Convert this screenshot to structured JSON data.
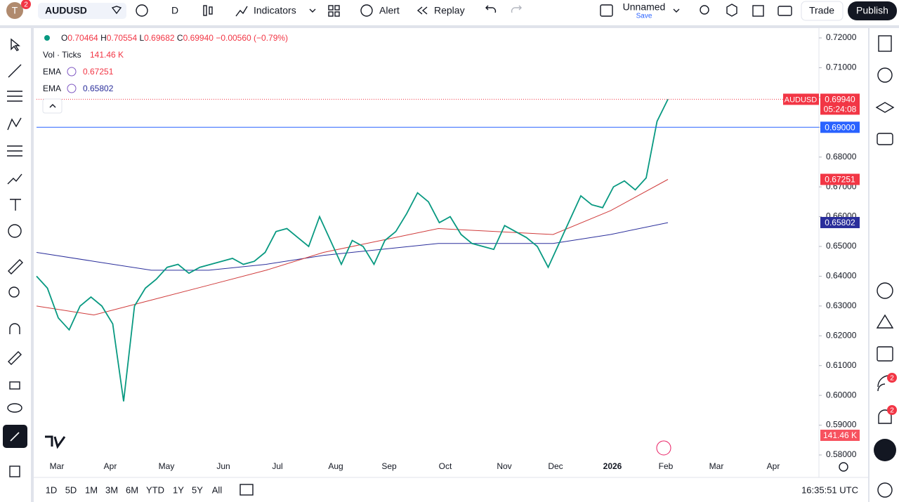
{
  "top_bar": {
    "avatar": "T",
    "avatar_badge": "2",
    "symbol": "AUDUSD",
    "interval": "D",
    "indicators": "Indicators",
    "alert": "Alert",
    "replay": "Replay",
    "layout_name": "Unnamed",
    "layout_status": "Save",
    "trade": "Trade",
    "publish": "Publish"
  },
  "legend": {
    "open_label": "O",
    "open": "0.70464",
    "high_label": "H",
    "high": "0.70554",
    "low_label": "L",
    "low": "0.69682",
    "close_label": "C",
    "close": "0.69940",
    "change": "−0.00560 (−0.79%)",
    "volume_label": "Vol · Ticks",
    "volume": "141.46 K",
    "ema_1_label": "EMA",
    "ema_1": "0.67251",
    "ema_2_label": "EMA",
    "ema_2": "0.65802"
  },
  "chart": {
    "closes": [
      0.64,
      0.636,
      0.626,
      0.622,
      0.63,
      0.633,
      0.63,
      0.624,
      0.598,
      0.63,
      0.636,
      0.639,
      0.643,
      0.644,
      0.641,
      0.643,
      0.644,
      0.645,
      0.646,
      0.644,
      0.645,
      0.648,
      0.655,
      0.656,
      0.653,
      0.65,
      0.66,
      0.652,
      0.644,
      0.652,
      0.65,
      0.644,
      0.652,
      0.655,
      0.661,
      0.668,
      0.665,
      0.658,
      0.66,
      0.654,
      0.651,
      0.65,
      0.649,
      0.657,
      0.655,
      0.653,
      0.65,
      0.643,
      0.651,
      0.659,
      0.667,
      0.664,
      0.663,
      0.67,
      0.672,
      0.669,
      0.673,
      0.692,
      0.6994
    ],
    "ema_fast": [
      0.63,
      0.627,
      0.632,
      0.637,
      0.642,
      0.648,
      0.652,
      0.656,
      0.655,
      0.654,
      0.662,
      0.6725
    ],
    "ema_slow": [
      0.648,
      0.645,
      0.642,
      0.642,
      0.644,
      0.647,
      0.649,
      0.651,
      0.651,
      0.651,
      0.654,
      0.658
    ],
    "ylim": [
      0.58,
      0.72
    ],
    "yticks": [
      {
        "value": 0.58,
        "label": "0.58000"
      },
      {
        "value": 0.59,
        "label": "0.59000"
      },
      {
        "value": 0.6,
        "label": "0.60000"
      },
      {
        "value": 0.61,
        "label": "0.61000"
      },
      {
        "value": 0.62,
        "label": "0.62000"
      },
      {
        "value": 0.63,
        "label": "0.63000"
      },
      {
        "value": 0.64,
        "label": "0.64000"
      },
      {
        "value": 0.65,
        "label": "0.65000"
      },
      {
        "value": 0.66,
        "label": "0.66000"
      },
      {
        "value": 0.67,
        "label": "0.67000"
      },
      {
        "value": 0.68,
        "label": "0.68000"
      },
      {
        "value": 0.69,
        "label": "0.69000"
      },
      {
        "value": 0.7,
        "label": "0.70000"
      },
      {
        "value": 0.71,
        "label": "0.71000"
      },
      {
        "value": 0.72,
        "label": "0.72000"
      }
    ],
    "months": [
      "Mar",
      "Apr",
      "May",
      "Jun",
      "Jul",
      "Aug",
      "Sep",
      "Oct",
      "Nov",
      "Dec",
      "2026",
      "Feb",
      "Mar",
      "Apr"
    ],
    "horizontal_line": {
      "value": 0.69,
      "label": "0.69000"
    },
    "last_price": {
      "value": 0.6994,
      "label": "0.69940"
    },
    "symbol_tag": "AUDUSD",
    "countdown": "05:24:08",
    "ema_fast_tag": 0.67251,
    "ema_slow_tag": 0.65802,
    "volume_tag": "141.46 K"
  },
  "bottom_bar": {
    "ranges": [
      "1D",
      "5D",
      "1M",
      "3M",
      "6M",
      "YTD",
      "1Y",
      "5Y",
      "All"
    ],
    "clock": "16:35:51 UTC"
  },
  "right_bar": {
    "badge_1": "2",
    "badge_2": "2"
  }
}
